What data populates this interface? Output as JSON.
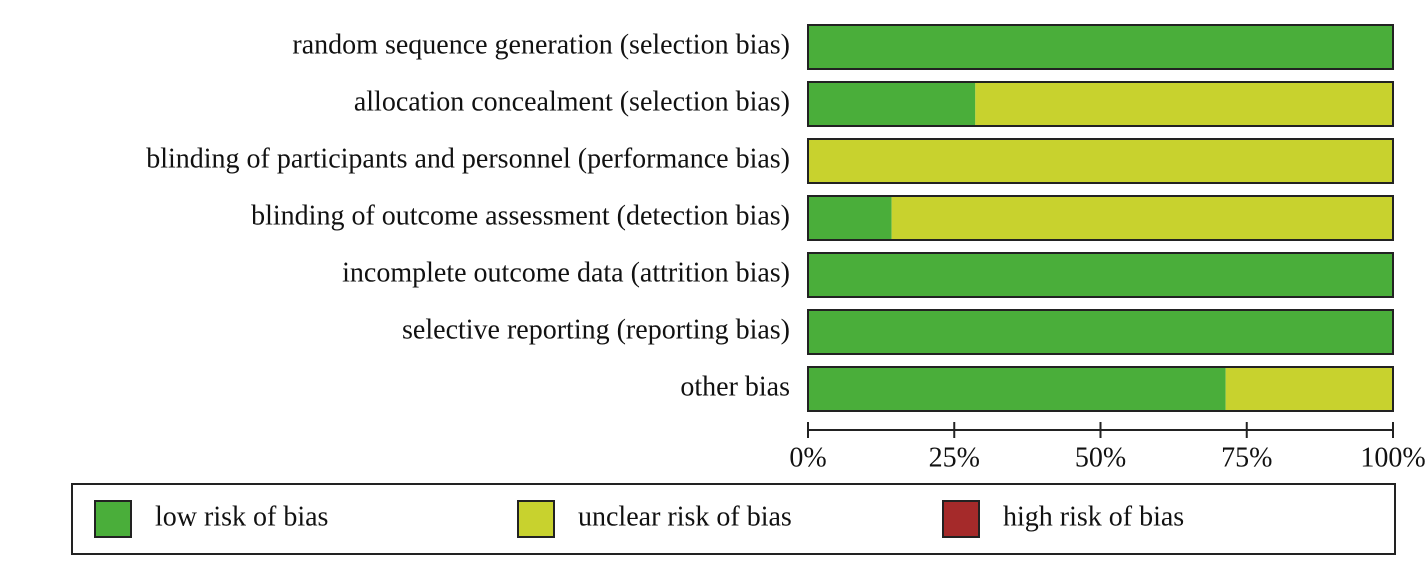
{
  "chart_data": {
    "type": "bar",
    "categories": [
      "random sequence generation (selection bias)",
      "allocation concealment (selection bias)",
      "blinding of participants and personnel (performance bias)",
      "blinding of outcome assessment (detection bias)",
      "incomplete outcome data (attrition bias)",
      "selective reporting (reporting bias)",
      "other bias"
    ],
    "series": [
      {
        "name": "low risk of bias",
        "color": "#4aae3a",
        "values": [
          100,
          28.6,
          0,
          14.3,
          100,
          100,
          71.4
        ]
      },
      {
        "name": "unclear risk of bias",
        "color": "#c8d22e",
        "values": [
          0,
          71.4,
          100,
          85.7,
          0,
          0,
          28.6
        ]
      },
      {
        "name": "high risk of bias",
        "color": "#a52a2a",
        "values": [
          0,
          0,
          0,
          0,
          0,
          0,
          0
        ]
      }
    ],
    "xlim": [
      0,
      100
    ],
    "xticks": [
      {
        "value": 0,
        "label": "0%"
      },
      {
        "value": 25,
        "label": "25%"
      },
      {
        "value": 50,
        "label": "50%"
      },
      {
        "value": 75,
        "label": "75%"
      },
      {
        "value": 100,
        "label": "100%"
      }
    ]
  }
}
